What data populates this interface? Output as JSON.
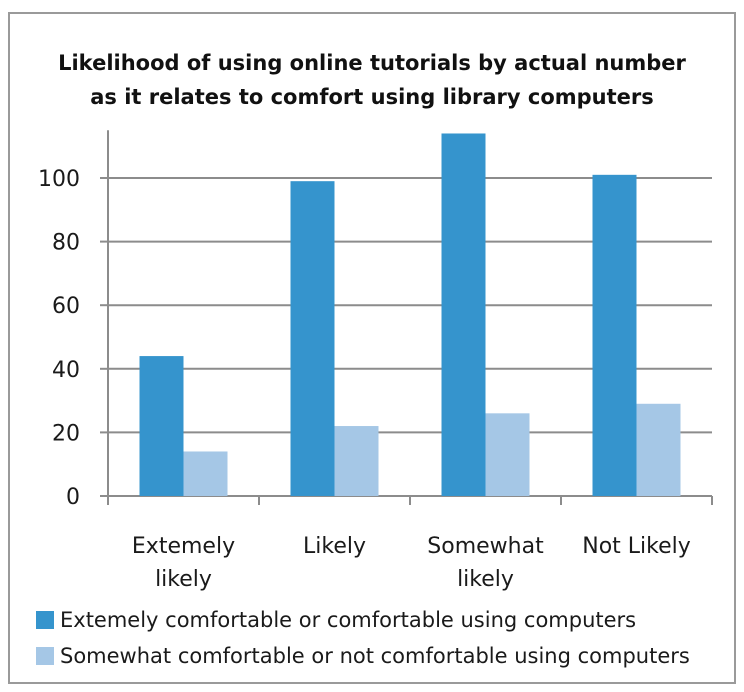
{
  "chart_data": {
    "type": "bar",
    "title_lines": [
      "Likelihood of using online tutorials by actual number",
      "as it relates to comfort using library computers"
    ],
    "categories": [
      [
        "Extemely",
        "likely"
      ],
      [
        "Likely"
      ],
      [
        "Somewhat",
        "likely"
      ],
      [
        "Not Likely"
      ]
    ],
    "series": [
      {
        "name": "Extemely comfortable or comfortable using computers",
        "color": "#3594cd",
        "values": [
          44,
          99,
          114,
          101
        ]
      },
      {
        "name": "Somewhat comfortable or not comfortable using computers",
        "color": "#a5c7e6",
        "values": [
          14,
          22,
          26,
          29
        ]
      }
    ],
    "yticks": [
      0,
      20,
      40,
      60,
      80,
      100
    ],
    "ylim": [
      0,
      115
    ],
    "grid": true,
    "legend_position": "bottom",
    "xlabel": "",
    "ylabel": ""
  }
}
